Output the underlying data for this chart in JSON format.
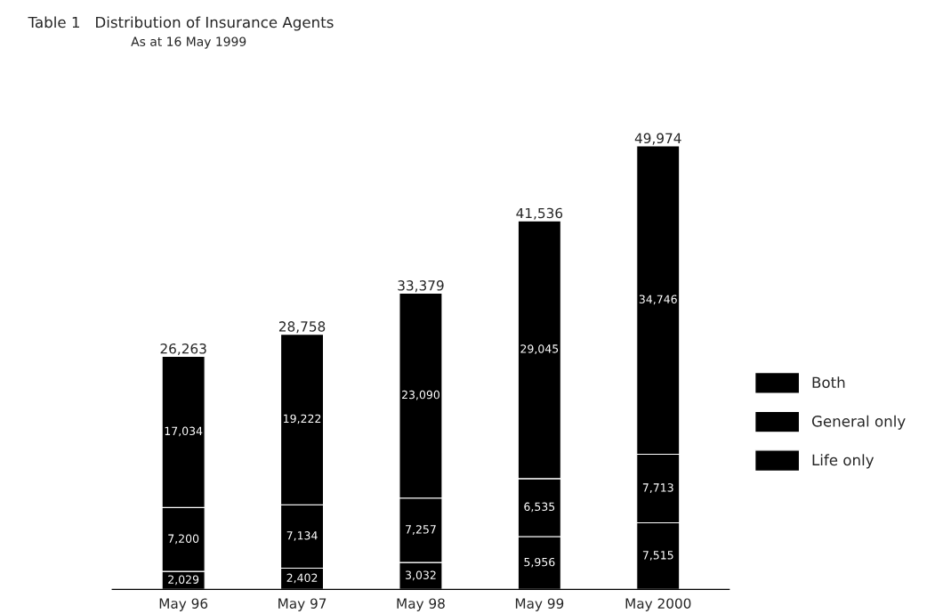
{
  "chart_data": {
    "type": "bar",
    "title": "Table 1   Distribution of Insurance Agents",
    "subtitle": "As at 16 May 1999",
    "categories": [
      "May 96",
      "May 97",
      "May 98",
      "May 99",
      "May 2000"
    ],
    "stacked": true,
    "series": [
      {
        "name": "Life only",
        "color": "#000000",
        "values": [
          2029,
          2402,
          3032,
          5956,
          7515
        ],
        "value_labels": [
          "2,029",
          "2,402",
          "3,032",
          "5,956",
          "7,515"
        ]
      },
      {
        "name": "General only",
        "color": "#000000",
        "values": [
          7200,
          7134,
          7257,
          6535,
          7713
        ],
        "value_labels": [
          "7,200",
          "7,134",
          "7,257",
          "6,535",
          "7,713"
        ]
      },
      {
        "name": "Both",
        "color": "#000000",
        "values": [
          17034,
          19222,
          23090,
          29045,
          34746
        ],
        "value_labels": [
          "17,034",
          "19,222",
          "23,090",
          "29,045",
          "34,746"
        ]
      }
    ],
    "totals": [
      "26,263",
      "28,758",
      "33,379",
      "41,536",
      "49,974"
    ],
    "legend": "right",
    "grid": false
  }
}
